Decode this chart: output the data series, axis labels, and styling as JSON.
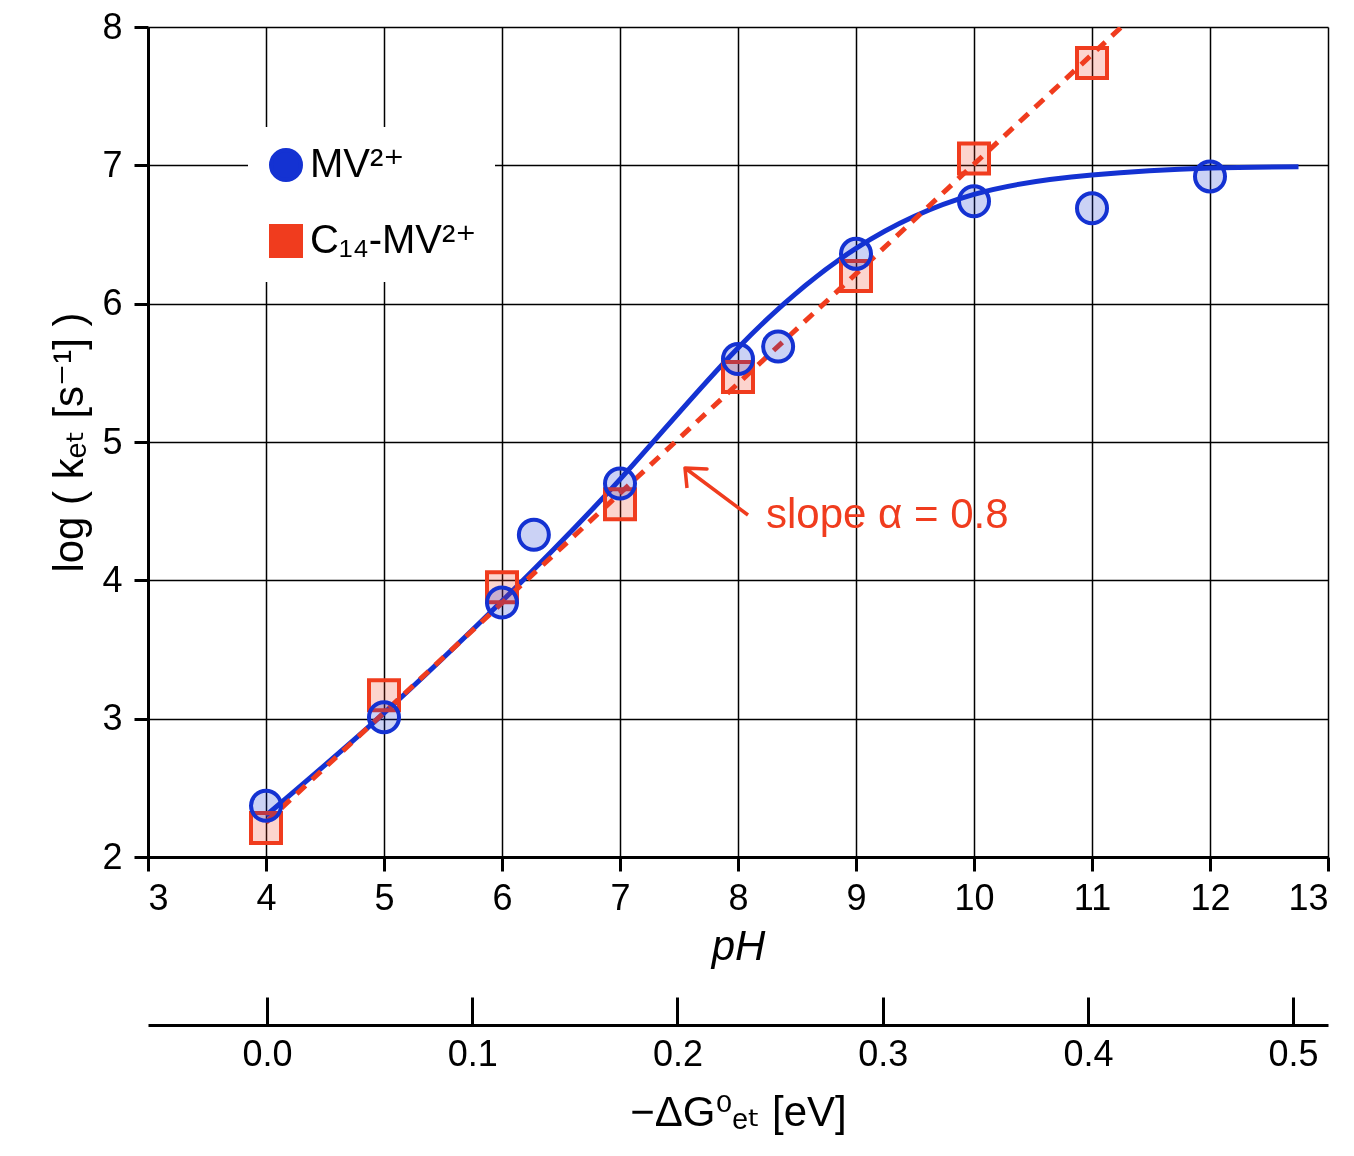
{
  "chart_data": {
    "type": "scatter",
    "xlabel": "pH",
    "ylabel": "log ( kₑₜ [s⁻¹] )",
    "x2label": "−ΔG⁰ₑₜ [eV]",
    "xlim": [
      3,
      13
    ],
    "xticks": [
      3,
      4,
      5,
      6,
      7,
      8,
      9,
      10,
      11,
      12,
      13
    ],
    "ylim": [
      2,
      8
    ],
    "yticks": [
      2,
      3,
      4,
      5,
      6,
      7,
      8
    ],
    "x2lim": [
      -0.058,
      0.517
    ],
    "x2ticks": [
      {
        "value": 0,
        "label": "0.0"
      },
      0.1,
      0.2,
      0.3,
      0.4,
      0.5
    ],
    "grid": true,
    "legend": "top left",
    "series": [
      {
        "name": "MV²⁺",
        "marker": "circle",
        "color": "#1432d2",
        "x": [
          4,
          5,
          6,
          6.27,
          7,
          8,
          8.34,
          9,
          10,
          11,
          12
        ],
        "values": [
          2.37,
          3.01,
          3.84,
          4.33,
          4.7,
          5.6,
          5.69,
          6.36,
          6.74,
          6.69,
          6.92
        ]
      },
      {
        "name": "C₁₄-MV²⁺",
        "marker": "square",
        "color": "#f03c1e",
        "x": [
          4,
          5,
          6,
          7,
          8,
          9,
          10,
          11
        ],
        "values": [
          2.21,
          3.17,
          3.95,
          4.55,
          5.47,
          6.2,
          7.05,
          7.74
        ]
      },
      {
        "type": "line",
        "line_style": "solid",
        "color": "#1432d2",
        "x": [
          4,
          5,
          6,
          7,
          8,
          9,
          10,
          11,
          12,
          12.75
        ],
        "values": [
          2.3,
          3.04,
          3.85,
          4.73,
          5.68,
          6.4,
          6.79,
          6.93,
          6.98,
          6.99
        ]
      },
      {
        "type": "line",
        "line_style": "dashed",
        "color": "#f03c1e",
        "x": [
          4,
          11.25
        ],
        "values": [
          2.25,
          8
        ]
      }
    ],
    "annotations": [
      "slope α = 0.8"
    ]
  }
}
